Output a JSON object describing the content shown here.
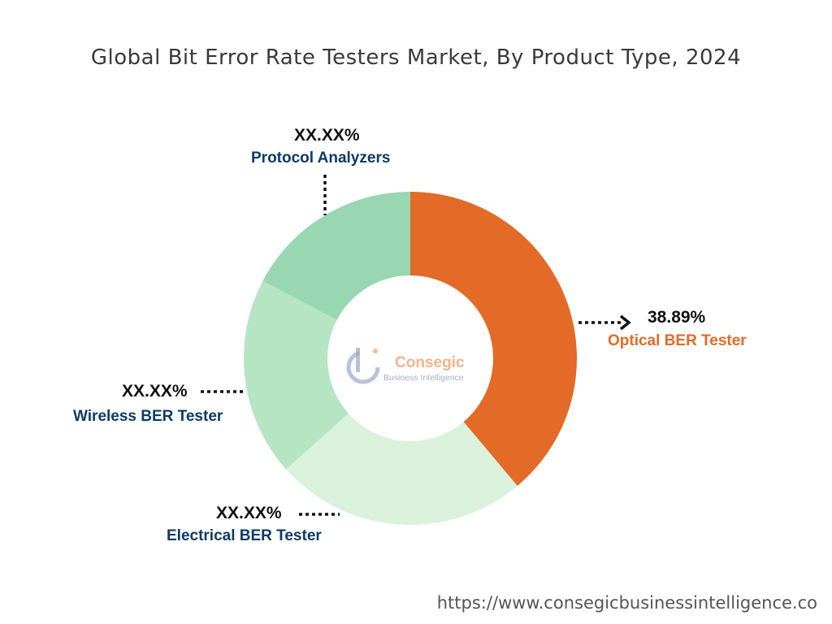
{
  "source_url": "https://www.consegicbusinessintelligence.co",
  "logo": {
    "name": "Consegic",
    "tagline": "Business Intelligence"
  },
  "colors": {
    "optical": "#e36a27",
    "electrical": "#daf2dc",
    "wireless": "#b6e5c4",
    "protocol": "#98d7b2",
    "accent_label": "#e36a27",
    "dark_label": "#0d3b66"
  },
  "chart_data": {
    "type": "pie",
    "title": "Global Bit Error Rate Testers Market, By Product Type, 2024",
    "donut": true,
    "series": [
      {
        "name": "Optical BER Tester",
        "label": "38.89%",
        "value": 38.89
      },
      {
        "name": "Electrical BER Tester",
        "label": "XX.XX%",
        "value": 24.5
      },
      {
        "name": "Wireless BER Tester",
        "label": "XX.XX%",
        "value": 19.3
      },
      {
        "name": "Protocol Analyzers",
        "label": "XX.XX%",
        "value": 17.31
      }
    ]
  }
}
